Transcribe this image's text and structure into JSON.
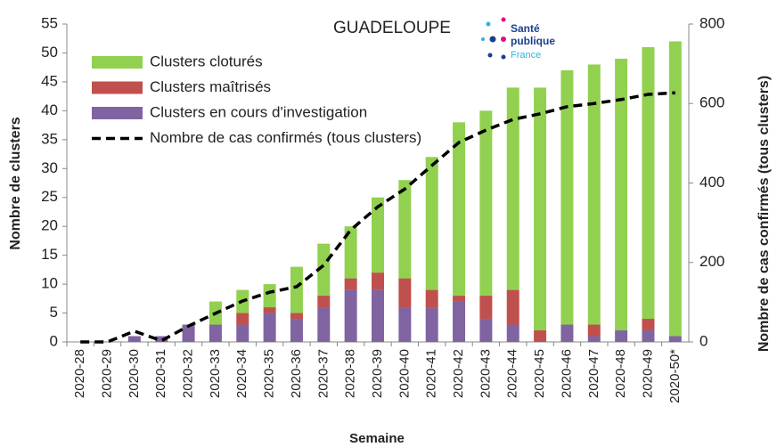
{
  "chart_data": {
    "type": "bar",
    "title": "GUADELOUPE",
    "stacked": true,
    "x_label": "Semaine",
    "y_label": "Nombre de clusters",
    "y2_label": "Nombre de cas confirmés (tous clusters)",
    "categories": [
      "2020-28",
      "2020-29",
      "2020-30",
      "2020-31",
      "2020-32",
      "2020-33",
      "2020-34",
      "2020-35",
      "2020-36",
      "2020-37",
      "2020-38",
      "2020-39",
      "2020-40",
      "2020-41",
      "2020-42",
      "2020-43",
      "2020-44",
      "2020-45",
      "2020-46",
      "2020-47",
      "2020-48",
      "2020-49",
      "2020-50*"
    ],
    "series": [
      {
        "name": "Clusters en cours d'investigation",
        "color": "#8064a2",
        "values": [
          0,
          0,
          1,
          1,
          3,
          3,
          3,
          5,
          4,
          6,
          9,
          9,
          6,
          6,
          7,
          4,
          3,
          0,
          3,
          1,
          2,
          2,
          1
        ]
      },
      {
        "name": "Clusters maîtrisés",
        "color": "#c0504d",
        "values": [
          0,
          0,
          0,
          0,
          0,
          0,
          2,
          1,
          1,
          2,
          2,
          3,
          5,
          3,
          1,
          4,
          6,
          2,
          0,
          2,
          0,
          2,
          0
        ]
      },
      {
        "name": "Clusters cloturés",
        "color": "#92d050",
        "values": [
          0,
          0,
          0,
          0,
          0,
          4,
          4,
          4,
          8,
          9,
          9,
          13,
          17,
          23,
          30,
          32,
          35,
          42,
          44,
          45,
          47,
          47,
          51
        ]
      },
      {
        "name": "Nombre de cas confirmés (tous clusters)",
        "type": "line",
        "axis": "y2",
        "color": "#000000",
        "values": [
          0,
          0,
          27,
          3,
          40,
          72,
          103,
          125,
          139,
          193,
          282,
          340,
          385,
          444,
          502,
          533,
          560,
          574,
          592,
          600,
          610,
          623,
          627
        ]
      }
    ],
    "ylim": [
      0,
      55
    ],
    "yticks": [
      0,
      5,
      10,
      15,
      20,
      25,
      30,
      35,
      40,
      45,
      50,
      55
    ],
    "y2lim": [
      0,
      800
    ],
    "y2ticks": [
      0,
      200,
      400,
      600,
      800
    ],
    "legend_order": [
      2,
      1,
      0,
      3
    ]
  },
  "logo": {
    "lines": [
      "Santé",
      "publique",
      "France"
    ]
  }
}
